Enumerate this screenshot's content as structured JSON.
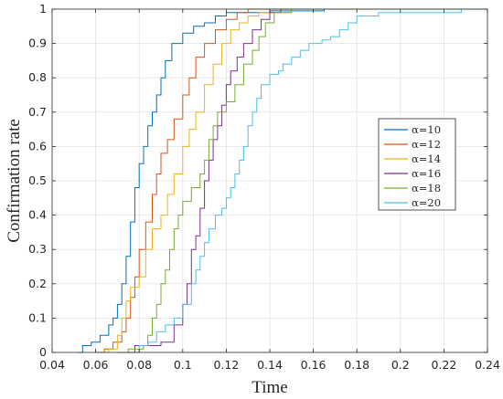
{
  "chart_data": {
    "type": "line",
    "xlabel": "Time",
    "ylabel": "Confirmation rate",
    "xlim": [
      0.04,
      0.24
    ],
    "ylim": [
      0,
      1
    ],
    "xticks": [
      "0.04",
      "0.06",
      "0.08",
      "0.1",
      "0.12",
      "0.14",
      "0.16",
      "0.18",
      "0.2",
      "0.22",
      "0.24"
    ],
    "yticks": [
      "0",
      "0.1",
      "0.2",
      "0.3",
      "0.4",
      "0.5",
      "0.6",
      "0.7",
      "0.8",
      "0.9",
      "1"
    ],
    "grid": true,
    "legend_position": "right",
    "series": [
      {
        "name": "α=10",
        "color": "#0072BD",
        "points": [
          [
            0.052,
            0
          ],
          [
            0.054,
            0.02
          ],
          [
            0.058,
            0.03
          ],
          [
            0.062,
            0.05
          ],
          [
            0.066,
            0.08
          ],
          [
            0.068,
            0.1
          ],
          [
            0.07,
            0.14
          ],
          [
            0.072,
            0.2
          ],
          [
            0.074,
            0.28
          ],
          [
            0.076,
            0.38
          ],
          [
            0.078,
            0.48
          ],
          [
            0.08,
            0.55
          ],
          [
            0.082,
            0.6
          ],
          [
            0.084,
            0.66
          ],
          [
            0.086,
            0.7
          ],
          [
            0.088,
            0.75
          ],
          [
            0.09,
            0.8
          ],
          [
            0.092,
            0.85
          ],
          [
            0.095,
            0.9
          ],
          [
            0.1,
            0.93
          ],
          [
            0.105,
            0.95
          ],
          [
            0.11,
            0.96
          ],
          [
            0.115,
            0.98
          ],
          [
            0.12,
            0.99
          ],
          [
            0.14,
            0.995
          ],
          [
            0.165,
            1
          ]
        ]
      },
      {
        "name": "α=12",
        "color": "#D95319",
        "points": [
          [
            0.06,
            0
          ],
          [
            0.064,
            0.01
          ],
          [
            0.068,
            0.03
          ],
          [
            0.072,
            0.06
          ],
          [
            0.074,
            0.1
          ],
          [
            0.076,
            0.16
          ],
          [
            0.078,
            0.22
          ],
          [
            0.08,
            0.3
          ],
          [
            0.083,
            0.38
          ],
          [
            0.086,
            0.46
          ],
          [
            0.088,
            0.52
          ],
          [
            0.09,
            0.58
          ],
          [
            0.093,
            0.62
          ],
          [
            0.096,
            0.68
          ],
          [
            0.1,
            0.75
          ],
          [
            0.103,
            0.8
          ],
          [
            0.106,
            0.86
          ],
          [
            0.11,
            0.9
          ],
          [
            0.115,
            0.94
          ],
          [
            0.12,
            0.97
          ],
          [
            0.125,
            0.99
          ],
          [
            0.13,
            1
          ]
        ]
      },
      {
        "name": "α=14",
        "color": "#EDB120",
        "points": [
          [
            0.064,
            0
          ],
          [
            0.066,
            0.01
          ],
          [
            0.07,
            0.05
          ],
          [
            0.072,
            0.1
          ],
          [
            0.074,
            0.15
          ],
          [
            0.076,
            0.19
          ],
          [
            0.08,
            0.22
          ],
          [
            0.083,
            0.3
          ],
          [
            0.086,
            0.36
          ],
          [
            0.09,
            0.4
          ],
          [
            0.093,
            0.46
          ],
          [
            0.096,
            0.52
          ],
          [
            0.1,
            0.6
          ],
          [
            0.103,
            0.65
          ],
          [
            0.106,
            0.7
          ],
          [
            0.11,
            0.78
          ],
          [
            0.114,
            0.84
          ],
          [
            0.118,
            0.9
          ],
          [
            0.122,
            0.94
          ],
          [
            0.126,
            0.96
          ],
          [
            0.13,
            0.98
          ],
          [
            0.135,
            0.99
          ],
          [
            0.15,
            1
          ]
        ]
      },
      {
        "name": "α=16",
        "color": "#7E2F8E",
        "points": [
          [
            0.075,
            0
          ],
          [
            0.078,
            0.02
          ],
          [
            0.09,
            0.03
          ],
          [
            0.096,
            0.08
          ],
          [
            0.1,
            0.14
          ],
          [
            0.102,
            0.2
          ],
          [
            0.104,
            0.3
          ],
          [
            0.106,
            0.34
          ],
          [
            0.108,
            0.42
          ],
          [
            0.11,
            0.5
          ],
          [
            0.112,
            0.56
          ],
          [
            0.114,
            0.62
          ],
          [
            0.116,
            0.66
          ],
          [
            0.118,
            0.72
          ],
          [
            0.12,
            0.78
          ],
          [
            0.122,
            0.82
          ],
          [
            0.125,
            0.86
          ],
          [
            0.128,
            0.9
          ],
          [
            0.132,
            0.94
          ],
          [
            0.136,
            0.97
          ],
          [
            0.14,
            0.99
          ],
          [
            0.145,
            1
          ]
        ]
      },
      {
        "name": "α=18",
        "color": "#77AC30",
        "points": [
          [
            0.07,
            0
          ],
          [
            0.075,
            0.01
          ],
          [
            0.082,
            0.02
          ],
          [
            0.084,
            0.05
          ],
          [
            0.086,
            0.1
          ],
          [
            0.088,
            0.14
          ],
          [
            0.09,
            0.2
          ],
          [
            0.092,
            0.24
          ],
          [
            0.094,
            0.3
          ],
          [
            0.096,
            0.36
          ],
          [
            0.098,
            0.4
          ],
          [
            0.1,
            0.44
          ],
          [
            0.104,
            0.48
          ],
          [
            0.108,
            0.52
          ],
          [
            0.11,
            0.56
          ],
          [
            0.112,
            0.62
          ],
          [
            0.114,
            0.66
          ],
          [
            0.116,
            0.7
          ],
          [
            0.12,
            0.73
          ],
          [
            0.124,
            0.78
          ],
          [
            0.128,
            0.84
          ],
          [
            0.132,
            0.88
          ],
          [
            0.135,
            0.92
          ],
          [
            0.138,
            0.96
          ],
          [
            0.142,
            0.99
          ],
          [
            0.15,
            1
          ]
        ]
      },
      {
        "name": "α=20",
        "color": "#4DBEEE",
        "points": [
          [
            0.078,
            0
          ],
          [
            0.08,
            0.02
          ],
          [
            0.084,
            0.03
          ],
          [
            0.088,
            0.06
          ],
          [
            0.092,
            0.08
          ],
          [
            0.096,
            0.1
          ],
          [
            0.1,
            0.14
          ],
          [
            0.104,
            0.2
          ],
          [
            0.106,
            0.24
          ],
          [
            0.108,
            0.28
          ],
          [
            0.11,
            0.32
          ],
          [
            0.112,
            0.36
          ],
          [
            0.115,
            0.4
          ],
          [
            0.118,
            0.42
          ],
          [
            0.12,
            0.45
          ],
          [
            0.122,
            0.48
          ],
          [
            0.124,
            0.52
          ],
          [
            0.126,
            0.56
          ],
          [
            0.128,
            0.6
          ],
          [
            0.13,
            0.66
          ],
          [
            0.132,
            0.7
          ],
          [
            0.134,
            0.74
          ],
          [
            0.136,
            0.78
          ],
          [
            0.14,
            0.81
          ],
          [
            0.144,
            0.82
          ],
          [
            0.146,
            0.84
          ],
          [
            0.15,
            0.86
          ],
          [
            0.154,
            0.88
          ],
          [
            0.158,
            0.9
          ],
          [
            0.164,
            0.91
          ],
          [
            0.168,
            0.92
          ],
          [
            0.172,
            0.94
          ],
          [
            0.176,
            0.96
          ],
          [
            0.18,
            0.98
          ],
          [
            0.19,
            0.99
          ],
          [
            0.228,
            1
          ]
        ]
      }
    ]
  }
}
